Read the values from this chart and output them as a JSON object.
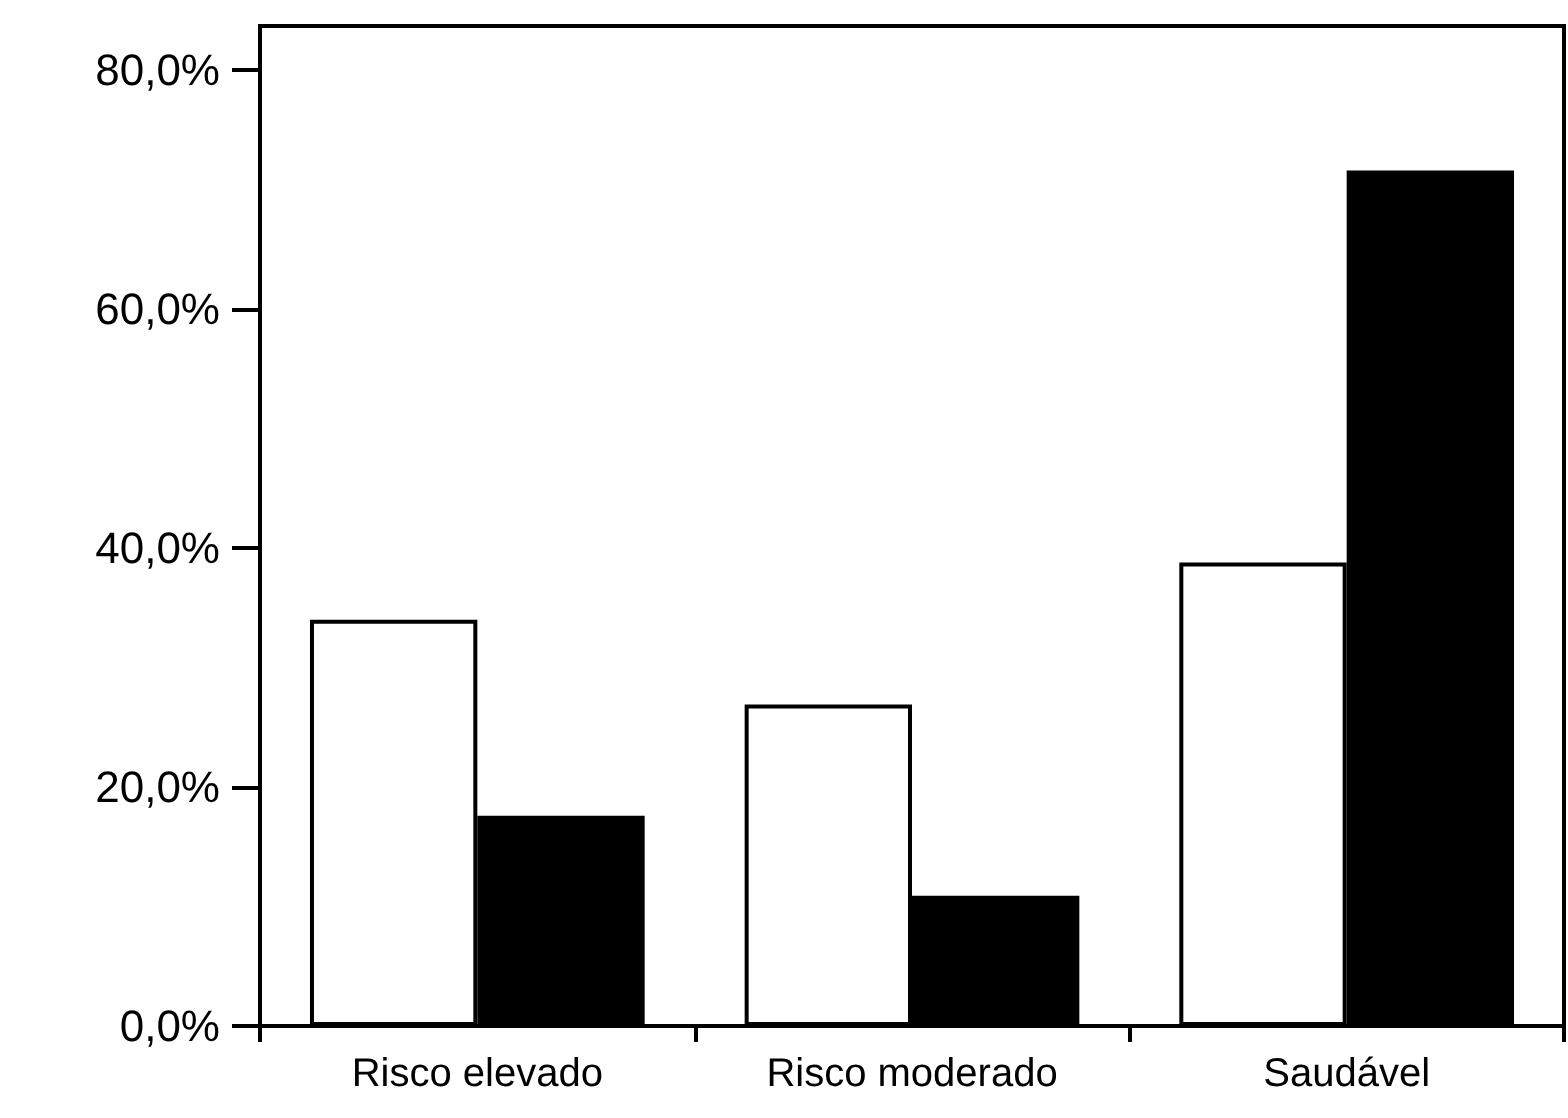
{
  "chart_data": {
    "type": "bar",
    "categories": [
      "Risco elevado",
      "Risco moderado",
      "Saudável"
    ],
    "series": [
      {
        "color": "#ffffff",
        "values": [
          34.0,
          26.9,
          38.8
        ]
      },
      {
        "color": "#000000",
        "values": [
          17.6,
          10.9,
          71.6
        ]
      }
    ],
    "ylim": [
      0,
      83.7
    ],
    "yticks": [
      {
        "value": 0,
        "label": "0,0%"
      },
      {
        "value": 20,
        "label": "20,0%"
      },
      {
        "value": 40,
        "label": "40,0%"
      },
      {
        "value": 60,
        "label": "60,0%"
      },
      {
        "value": 80,
        "label": "80,0%"
      }
    ],
    "grid": false
  }
}
